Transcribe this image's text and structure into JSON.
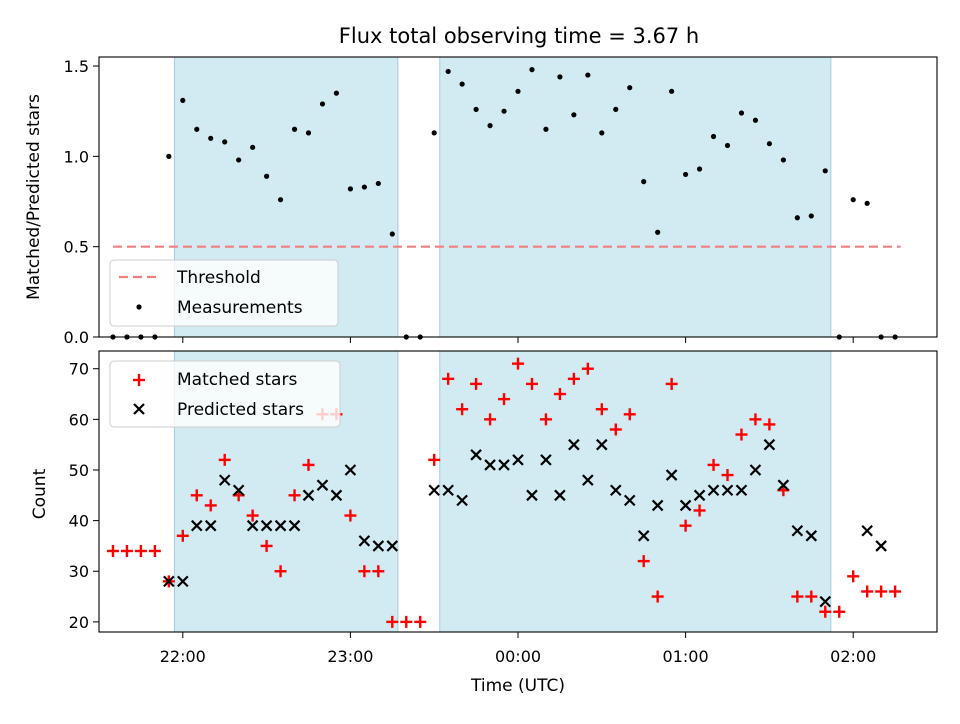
{
  "chart_data": [
    {
      "type": "scatter",
      "title": "Flux total observing time = 3.67 h",
      "xlabel": "",
      "ylabel": "Matched/Predicted stars",
      "ylim": [
        0,
        1.55
      ],
      "yticks": [
        "0.0",
        "0.5",
        "1.0",
        "1.5"
      ],
      "grid": false,
      "legend_position": "lower-left",
      "shaded_intervals": [
        [
          "21:57",
          "23:17"
        ],
        [
          "23:32",
          "01:52"
        ]
      ],
      "shade_color": "#add8e6",
      "threshold": {
        "name": "Threshold",
        "value": 0.5,
        "x_start": "21:35",
        "x_end": "02:17",
        "color": "#f08080"
      },
      "series": [
        {
          "name": "Measurements",
          "color": "#000000",
          "x": [
            "21:35",
            "21:40",
            "21:45",
            "21:50",
            "21:55",
            "22:00",
            "22:05",
            "22:10",
            "22:15",
            "22:20",
            "22:25",
            "22:30",
            "22:35",
            "22:40",
            "22:45",
            "22:50",
            "22:55",
            "23:00",
            "23:05",
            "23:10",
            "23:15",
            "23:20",
            "23:25",
            "23:30",
            "23:35",
            "23:40",
            "23:45",
            "23:50",
            "23:55",
            "00:00",
            "00:05",
            "00:10",
            "00:15",
            "00:20",
            "00:25",
            "00:30",
            "00:35",
            "00:40",
            "00:45",
            "00:50",
            "00:55",
            "01:00",
            "01:05",
            "01:10",
            "01:15",
            "01:20",
            "01:25",
            "01:30",
            "01:35",
            "01:40",
            "01:45",
            "01:50",
            "01:55",
            "02:00",
            "02:05",
            "02:10",
            "02:15"
          ],
          "y": [
            0,
            0,
            0,
            0,
            1.0,
            1.31,
            1.15,
            1.1,
            1.08,
            0.98,
            1.05,
            0.89,
            0.76,
            1.15,
            1.13,
            1.29,
            1.35,
            0.82,
            0.83,
            0.85,
            0.57,
            0,
            0,
            1.13,
            1.47,
            1.4,
            1.26,
            1.17,
            1.25,
            1.36,
            1.48,
            1.15,
            1.44,
            1.23,
            1.45,
            1.13,
            1.26,
            1.38,
            0.86,
            0.58,
            1.36,
            0.9,
            0.93,
            1.11,
            1.06,
            1.24,
            1.2,
            1.07,
            0.98,
            0.66,
            0.67,
            0.92,
            0,
            0.76,
            0.74,
            0,
            0
          ]
        }
      ]
    },
    {
      "type": "scatter",
      "title": "",
      "xlabel": "Time (UTC)",
      "ylabel": "Count",
      "ylim": [
        18,
        73.5
      ],
      "yticks": [
        "20",
        "30",
        "40",
        "50",
        "60",
        "70"
      ],
      "xticks": [
        "22:00",
        "23:00",
        "00:00",
        "01:00",
        "02:00"
      ],
      "grid": false,
      "legend_position": "upper-left",
      "series": [
        {
          "name": "Matched stars",
          "color": "#ff0000",
          "marker": "plus",
          "x": [
            "21:35",
            "21:40",
            "21:45",
            "21:50",
            "21:55",
            "22:00",
            "22:05",
            "22:10",
            "22:15",
            "22:20",
            "22:25",
            "22:30",
            "22:35",
            "22:40",
            "22:45",
            "22:50",
            "22:55",
            "23:00",
            "23:05",
            "23:10",
            "23:15",
            "23:20",
            "23:25",
            "23:30",
            "23:35",
            "23:40",
            "23:45",
            "23:50",
            "23:55",
            "00:00",
            "00:05",
            "00:10",
            "00:15",
            "00:20",
            "00:25",
            "00:30",
            "00:35",
            "00:40",
            "00:45",
            "00:50",
            "00:55",
            "01:00",
            "01:05",
            "01:10",
            "01:15",
            "01:20",
            "01:25",
            "01:30",
            "01:35",
            "01:40",
            "01:45",
            "01:50",
            "01:55",
            "02:00",
            "02:05",
            "02:10",
            "02:15"
          ],
          "y": [
            34,
            34,
            34,
            34,
            28,
            37,
            45,
            43,
            52,
            45,
            41,
            35,
            30,
            45,
            51,
            61,
            61,
            41,
            30,
            30,
            20,
            20,
            20,
            52,
            68,
            62,
            67,
            60,
            64,
            71,
            67,
            60,
            65,
            68,
            70,
            62,
            58,
            61,
            32,
            25,
            67,
            39,
            42,
            51,
            49,
            57,
            60,
            59,
            46,
            25,
            25,
            22,
            22,
            29,
            26,
            26,
            26
          ]
        },
        {
          "name": "Predicted stars",
          "color": "#000000",
          "marker": "x",
          "x": [
            "21:55",
            "22:00",
            "22:05",
            "22:10",
            "22:15",
            "22:20",
            "22:25",
            "22:30",
            "22:35",
            "22:40",
            "22:45",
            "22:50",
            "22:55",
            "23:00",
            "23:05",
            "23:10",
            "23:15",
            "23:30",
            "23:35",
            "23:40",
            "23:45",
            "23:50",
            "23:55",
            "00:00",
            "00:05",
            "00:10",
            "00:15",
            "00:20",
            "00:25",
            "00:30",
            "00:35",
            "00:40",
            "00:45",
            "00:50",
            "00:55",
            "01:00",
            "01:05",
            "01:10",
            "01:15",
            "01:20",
            "01:25",
            "01:30",
            "01:35",
            "01:40",
            "01:45",
            "01:50",
            "02:05",
            "02:10"
          ],
          "y": [
            28,
            28,
            39,
            39,
            48,
            46,
            39,
            39,
            39,
            39,
            45,
            47,
            45,
            50,
            36,
            35,
            35,
            46,
            46,
            44,
            53,
            51,
            51,
            52,
            45,
            52,
            45,
            55,
            48,
            55,
            46,
            44,
            37,
            43,
            49,
            43,
            45,
            46,
            46,
            46,
            50,
            55,
            47,
            38,
            37,
            24,
            38,
            35
          ]
        }
      ]
    }
  ]
}
